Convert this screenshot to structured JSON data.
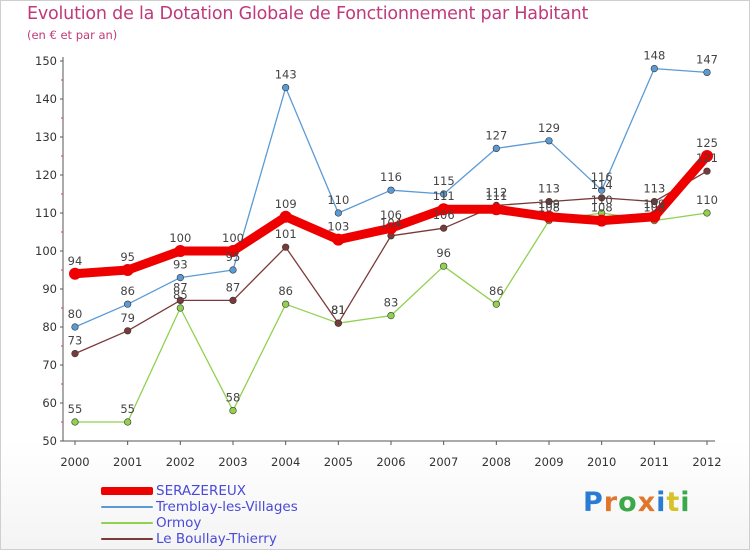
{
  "title": "Evolution de la Dotation Globale de Fonctionnement par Habitant",
  "subtitle": "(en € et par an)",
  "logo": {
    "letters": [
      "P",
      "r",
      "o",
      "x",
      "i",
      "t",
      "i"
    ],
    "colors": [
      "#2a7bd4",
      "#e0762b",
      "#3ba84a",
      "#e0762b",
      "#2a7bd4",
      "#d8c22a",
      "#3ba84a"
    ]
  },
  "chart_data": {
    "type": "line",
    "x": [
      "2000",
      "2001",
      "2002",
      "2003",
      "2004",
      "2005",
      "2006",
      "2007",
      "2008",
      "2009",
      "2010",
      "2011",
      "2012"
    ],
    "ylim": [
      50,
      150
    ],
    "yticks": [
      50,
      60,
      70,
      80,
      90,
      100,
      110,
      120,
      130,
      140,
      150
    ],
    "grid": false,
    "legend_position": "bottom-left",
    "series": [
      {
        "name": "SERAZEREUX",
        "color": "#ee0000",
        "values": [
          94,
          95,
          100,
          100,
          109,
          103,
          106,
          111,
          111,
          109,
          108,
          109,
          125
        ],
        "labels": [
          "94",
          "95",
          "100",
          "100",
          "109",
          "103",
          "106",
          "111",
          "111",
          "109",
          "108",
          "109",
          "125"
        ]
      },
      {
        "name": "Tremblay-les-Villages",
        "color": "#5b9bd5",
        "values": [
          80,
          86,
          93,
          95,
          143,
          110,
          116,
          115,
          127,
          129,
          116,
          148,
          147
        ],
        "labels": [
          "80",
          "86",
          "93",
          "95",
          "143",
          "110",
          "116",
          "115",
          "127",
          "129",
          "116",
          "148",
          "147"
        ]
      },
      {
        "name": "Ormoy",
        "color": "#92d050",
        "values": [
          55,
          55,
          85,
          58,
          86,
          81,
          83,
          96,
          86,
          108,
          110,
          108,
          110
        ],
        "labels": [
          "55",
          "55",
          "85",
          "58",
          "86",
          "81",
          "83",
          "96",
          "86",
          "108",
          "110",
          "108",
          "110"
        ]
      },
      {
        "name": "Le Boullay-Thierry",
        "color": "#7b3a3a",
        "values": [
          73,
          79,
          87,
          87,
          101,
          81,
          104,
          106,
          112,
          113,
          114,
          113,
          121
        ],
        "labels": [
          "73",
          "79",
          "87",
          "87",
          "101",
          "81",
          "104",
          "106",
          "112",
          "113",
          "114",
          "113",
          "121"
        ]
      }
    ]
  }
}
